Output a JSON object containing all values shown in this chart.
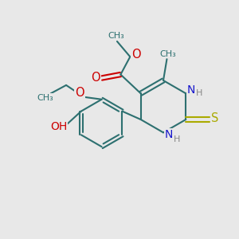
{
  "bg_color": "#e8e8e8",
  "bond_color": "#2d7070",
  "N_color": "#1515cc",
  "O_color": "#cc0000",
  "S_color": "#aaaa00",
  "H_color": "#888888",
  "lw": 1.5,
  "fs": 8.5,
  "figsize": [
    3.0,
    3.0
  ],
  "dpi": 100,
  "xlim": [
    0,
    10
  ],
  "ylim": [
    0,
    10
  ]
}
